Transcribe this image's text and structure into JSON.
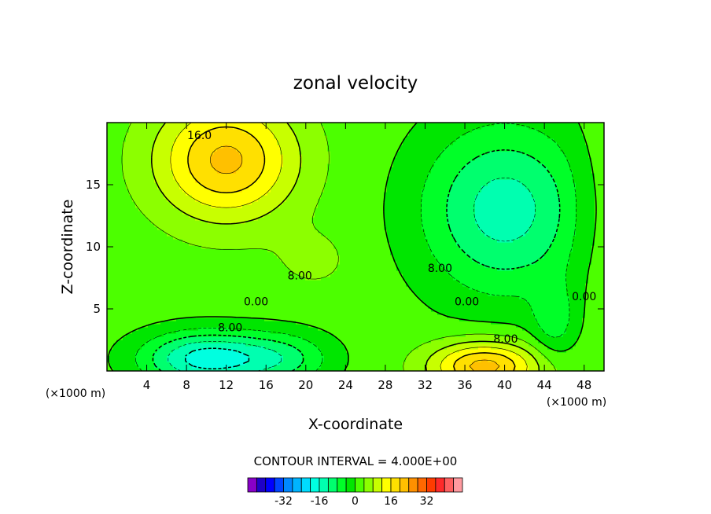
{
  "chart_data": {
    "type": "contour",
    "title": "zonal velocity",
    "xlabel": "X-coordinate",
    "ylabel": "Z-coordinate",
    "x_units": "(×1000 m)",
    "z_units": "(×1000 m)",
    "xlim": [
      0,
      50
    ],
    "ylim": [
      0,
      20
    ],
    "x_ticks": [
      4,
      8,
      12,
      16,
      20,
      24,
      28,
      32,
      36,
      40,
      44,
      48
    ],
    "y_ticks": [
      5,
      10,
      15
    ],
    "contour_interval_text": "CONTOUR INTERVAL = 4.000E+00",
    "contour_interval": 4,
    "contour_labels": [
      {
        "text": "16.0",
        "x": 9.3,
        "z": 19.0
      },
      {
        "text": "8.00",
        "x": 19.4,
        "z": 7.7
      },
      {
        "text": "0.00",
        "x": 15.0,
        "z": 5.6
      },
      {
        "text": "8.00",
        "x": 12.4,
        "z": 3.5
      },
      {
        "text": "8.00",
        "x": 33.5,
        "z": 8.3
      },
      {
        "text": "0.00",
        "x": 36.2,
        "z": 5.6
      },
      {
        "text": "8.00",
        "x": 40.1,
        "z": 2.6
      },
      {
        "text": "0.00",
        "x": 48.0,
        "z": 6.0
      }
    ],
    "colorbar": {
      "ticks": [
        -32,
        -16,
        0,
        16,
        32
      ],
      "colors": [
        "#8800c8",
        "#1e00c8",
        "#0000ff",
        "#0044ff",
        "#0088ff",
        "#00b4ff",
        "#00dcff",
        "#00ffe0",
        "#00ffb0",
        "#00ff6e",
        "#00ff28",
        "#00e600",
        "#4cff00",
        "#8cff00",
        "#c8ff00",
        "#ffff00",
        "#ffe000",
        "#ffc000",
        "#ff9000",
        "#ff6800",
        "#ff3c00",
        "#ff2a2a",
        "#ff6060",
        "#ff9aa0"
      ]
    },
    "field": {
      "background": 2,
      "features": [
        {
          "x": 12,
          "z": 17,
          "sx": 7,
          "sz": 4.8,
          "amp": 19
        },
        {
          "x": 21,
          "z": 9,
          "sx": 4,
          "sz": 2.5,
          "amp": 3
        },
        {
          "x": 40,
          "z": 13,
          "sx": 8.5,
          "sz": 7,
          "amp": -16
        },
        {
          "x": 10,
          "z": 1,
          "sx": 6.5,
          "sz": 2.2,
          "amp": -20
        },
        {
          "x": 18,
          "z": 1,
          "sx": 5,
          "sz": 2.2,
          "amp": -9
        },
        {
          "x": 38,
          "z": 0.4,
          "sx": 5.5,
          "sz": 2.0,
          "amp": 20
        },
        {
          "x": 45,
          "z": 4,
          "sx": 2.2,
          "sz": 3,
          "amp": -7
        },
        {
          "x": 49,
          "z": 13,
          "sx": 2.5,
          "sz": 7,
          "amp": 3
        }
      ]
    }
  }
}
